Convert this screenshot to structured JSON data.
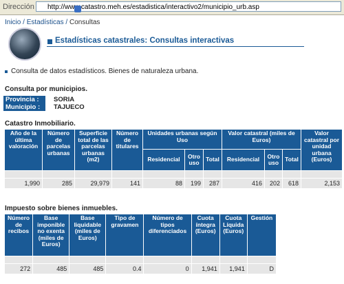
{
  "browser": {
    "address_label": "Dirección",
    "url": "http://www.catastro.meh.es/estadistica/interactivo2/municipio_urb.asp"
  },
  "breadcrumb": {
    "items": [
      "Inicio",
      "Estadísticas",
      "Consultas"
    ]
  },
  "header": {
    "title": "Estadísticas catastrales: Consultas interactivas"
  },
  "intro": "Consulta de datos estadísticos. Bienes de naturaleza urbana.",
  "municipio": {
    "heading": "Consulta por municipios.",
    "fields": [
      {
        "label": "Provincia :",
        "value": "SORIA"
      },
      {
        "label": "Municipio :",
        "value": "TAJUECO"
      }
    ]
  },
  "catastro": {
    "heading": "Catastro Inmobiliario.",
    "columns": [
      {
        "label": "Año de la última valoración"
      },
      {
        "label": "Número de parcelas urbanas"
      },
      {
        "label": "Superficie total de las parcelas urbanas (m2)"
      },
      {
        "label": "Número de titulares"
      },
      {
        "label": "Unidades urbanas según Uso",
        "sub": [
          "Residencial",
          "Otro uso",
          "Total"
        ]
      },
      {
        "label": "Valor catastral (miles de Euros)",
        "sub": [
          "Residencial",
          "Otro uso",
          "Total"
        ]
      },
      {
        "label": "Valor catastral por unidad urbana (Euros)"
      }
    ],
    "row": [
      "1,990",
      "285",
      "29,979",
      "141",
      "88",
      "199",
      "287",
      "416",
      "202",
      "618",
      "2,153"
    ]
  },
  "ibi": {
    "heading": "Impuesto sobre bienes inmuebles.",
    "columns": [
      {
        "label": "Número de recibos"
      },
      {
        "label": "Base imponible no exenta (miles de Euros)"
      },
      {
        "label": "Base liquidable (miles de Euros)"
      },
      {
        "label": "Tipo de gravamen"
      },
      {
        "label": "Número de tipos diferenciados"
      },
      {
        "label": "Cuota íntegra (Euros)"
      },
      {
        "label": "Cuota Líquida (Euros)"
      },
      {
        "label": "Gestión"
      }
    ],
    "row": [
      "272",
      "485",
      "485",
      "0.4",
      "0",
      "1,941",
      "1,941",
      "D"
    ]
  }
}
